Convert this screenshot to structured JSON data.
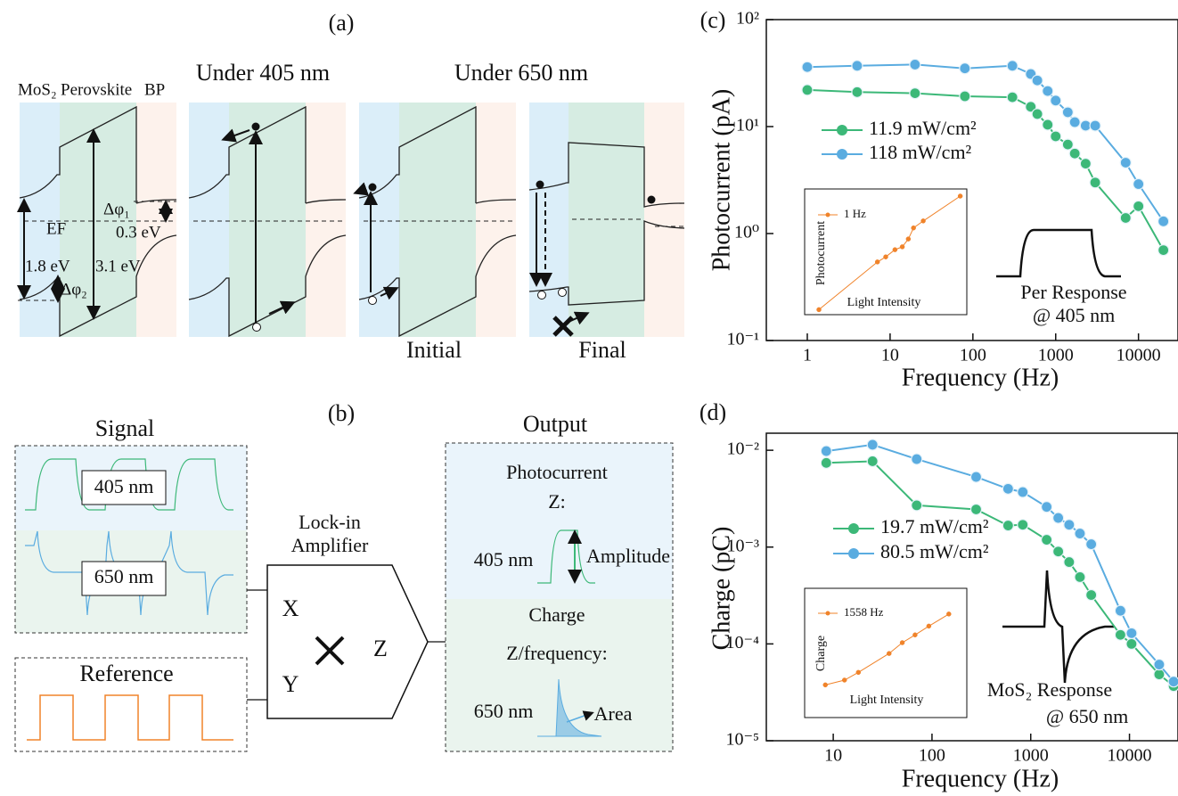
{
  "panel_a": {
    "label": "(a)",
    "layers": [
      "MoS₂",
      "Perovskite",
      "BP"
    ],
    "titles": [
      "Under 405 nm",
      "Under 650 nm"
    ],
    "fermi": "EF",
    "dphi1": "Δφ₁",
    "dphi2": "Δφ₂",
    "gap_small": "0.3 eV",
    "gap_mos2": "1.8 eV",
    "gap_perovskite": "3.1 eV",
    "states": [
      "Initial",
      "Final"
    ]
  },
  "panel_b": {
    "label": "(b)",
    "signal": "Signal",
    "wavelengths": [
      "405 nm",
      "650 nm"
    ],
    "reference": "Reference",
    "amplifier": [
      "Lock-in",
      "Amplifier"
    ],
    "inputs": [
      "X",
      "Y"
    ],
    "output_symbol": "Z",
    "output": "Output",
    "photocurrent": "Photocurrent",
    "z_label": "Z:",
    "amplitude_wavelength": "405 nm",
    "amplitude": "Amplitude",
    "charge": "Charge",
    "z_freq": "Z/frequency:",
    "area_wavelength": "650 nm",
    "area": "Area"
  },
  "chart_data": [
    {
      "type": "line",
      "panel": "(c)",
      "x_label": "Frequency  (Hz)",
      "y_label": "Photocurrent  (pA)",
      "xscale": "log",
      "yscale": "log",
      "x": [
        1,
        4,
        20,
        80,
        300,
        500,
        600,
        800,
        1000,
        1400,
        1700,
        2300,
        3000,
        7000,
        10000,
        20000
      ],
      "series": [
        {
          "name": "11.9 mW/cm²",
          "color": "#3cb878",
          "values": [
            22,
            21,
            20.5,
            19.2,
            18.8,
            15.3,
            13.1,
            10.4,
            8.1,
            6.8,
            5.6,
            4.5,
            3,
            1.4,
            1.8,
            0.7
          ]
        },
        {
          "name": "118 mW/cm²",
          "color": "#5aace0",
          "values": [
            36,
            37,
            38,
            35,
            37,
            31,
            27,
            21.5,
            17.5,
            13.6,
            11,
            10.2,
            10.2,
            4.6,
            2.9,
            1.3
          ]
        }
      ],
      "xlim": [
        0.32,
        30000
      ],
      "xticks": [
        1,
        10,
        100,
        1000,
        10000
      ],
      "ylim": [
        0.1,
        100
      ],
      "yticks": [
        {
          "value": 0.1,
          "label": "10⁻¹"
        },
        {
          "value": 1,
          "label": "10⁰"
        },
        {
          "value": 10,
          "label": "10¹"
        },
        {
          "value": 100,
          "label": "10²"
        }
      ],
      "annotations": [
        "Per Response",
        "@ 405 nm"
      ]
    },
    {
      "type": "line",
      "x_label": "Light Intensity",
      "y_label": "Photocurrent",
      "xscale": "log",
      "yscale": "log",
      "x": [
        1.5,
        7.9,
        10,
        13,
        16,
        19,
        22,
        29,
        83
      ],
      "series": [
        {
          "name": "1 Hz",
          "color": "#f0832a",
          "values": [
            0.12,
            0.69,
            0.83,
            1.08,
            1.2,
            1.6,
            2.4,
            3.1,
            7.7
          ]
        }
      ],
      "xlim": [
        1,
        100
      ],
      "ylim": [
        0.1,
        10
      ]
    },
    {
      "type": "line",
      "panel": "(d)",
      "x_label": "Frequency  (Hz)",
      "y_label": "Charge  (pC)",
      "xscale": "log",
      "yscale": "log",
      "x": [
        8.5,
        25,
        70,
        280,
        590,
        830,
        1450,
        1900,
        2450,
        3150,
        4100,
        8100,
        10500,
        20000,
        28000
      ],
      "series": [
        {
          "name": "19.7 mW/cm²",
          "color": "#3cb878",
          "values": [
            0.0074,
            0.0077,
            0.0027,
            0.00245,
            0.00167,
            0.0017,
            0.00119,
            0.0009,
            0.0007,
            0.00049,
            0.00032,
            0.000124,
            0.0001,
            4.84e-05,
            3.67e-05
          ]
        },
        {
          "name": "80.5 mW/cm²",
          "color": "#5aace0",
          "values": [
            0.0098,
            0.0114,
            0.0081,
            0.0053,
            0.004,
            0.0037,
            0.0026,
            0.002,
            0.0017,
            0.00138,
            0.00107,
            0.00022,
            0.000129,
            6.12e-05,
            4.08e-05
          ]
        }
      ],
      "xlim": [
        2.1,
        31000
      ],
      "xticks": [
        10,
        100,
        1000,
        10000
      ],
      "ylim": [
        1e-05,
        0.015
      ],
      "yticks": [
        {
          "value": 1e-05,
          "label": "10⁻⁵"
        },
        {
          "value": 0.0001,
          "label": "10⁻⁴"
        },
        {
          "value": 0.001,
          "label": "10⁻³"
        },
        {
          "value": 0.01,
          "label": "10⁻²"
        }
      ],
      "annotations": [
        "MoS₂ Response",
        "@ 650 nm"
      ]
    },
    {
      "type": "line",
      "x_label": "Light Intensity",
      "y_label": "Charge",
      "xscale": "log",
      "yscale": "log",
      "x": [
        1.8,
        3.1,
        4.6,
        11,
        16,
        23,
        34,
        60
      ],
      "series": [
        {
          "name": "1558 Hz",
          "color": "#f0832a",
          "values": [
            0.32,
            0.38,
            0.5,
            0.98,
            1.44,
            1.9,
            2.6,
            4
          ]
        }
      ],
      "xlim": [
        1,
        100
      ],
      "ylim": [
        0.1,
        10
      ]
    }
  ]
}
